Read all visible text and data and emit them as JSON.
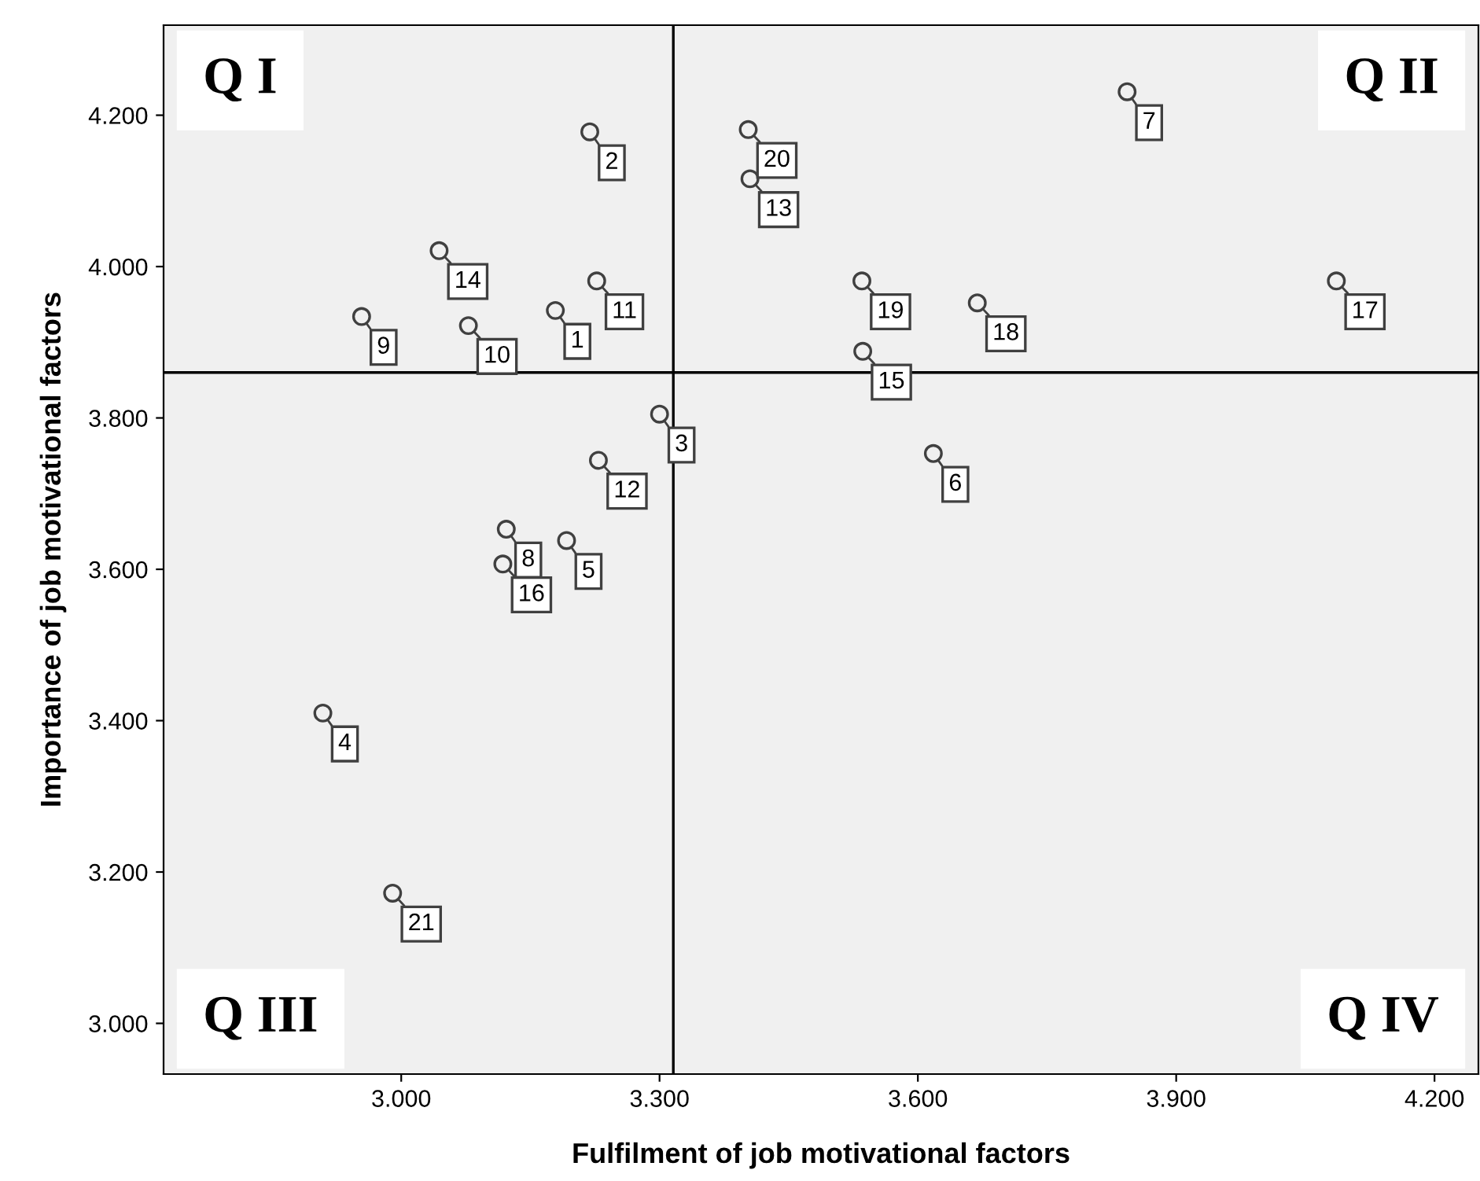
{
  "chart_data": {
    "type": "scatter",
    "xlabel": "Fulfilment of job motivational factors",
    "ylabel": "Importance of job motivational factors",
    "x": [
      3.179,
      3.219,
      3.3,
      2.909,
      3.192,
      3.618,
      3.843,
      3.122,
      2.954,
      3.078,
      3.227,
      3.229,
      3.405,
      3.044,
      3.536,
      3.118,
      4.086,
      3.669,
      3.535,
      3.403,
      2.99
    ],
    "series": [
      {
        "color": "#404040",
        "values": [
          3.942,
          4.178,
          3.805,
          3.41,
          3.638,
          3.753,
          4.231,
          3.653,
          3.934,
          3.922,
          3.981,
          3.744,
          4.116,
          4.021,
          3.888,
          3.607,
          3.981,
          3.952,
          3.981,
          4.181,
          3.172
        ]
      }
    ],
    "marker": "circle",
    "xlim": [
      2.724,
      4.251
    ],
    "ylim": [
      2.933,
      4.319
    ],
    "xticks": [
      {
        "value": 3.0,
        "label": "3.000"
      },
      {
        "value": 3.3,
        "label": "3.300"
      },
      {
        "value": 3.6,
        "label": "3.600"
      },
      {
        "value": 3.9,
        "label": "3.900"
      },
      {
        "value": 4.2,
        "label": "4.200"
      }
    ],
    "yticks": [
      {
        "value": 3.0,
        "label": "3.000"
      },
      {
        "value": 3.2,
        "label": "3.200"
      },
      {
        "value": 3.4,
        "label": "3.400"
      },
      {
        "value": 3.6,
        "label": "3.600"
      },
      {
        "value": 3.8,
        "label": "3.800"
      },
      {
        "value": 4.0,
        "label": "4.000"
      },
      {
        "value": 4.2,
        "label": "4.200"
      }
    ],
    "ref_lines": [
      {
        "axis": "x",
        "value": 3.316,
        "color": "#000000"
      },
      {
        "axis": "y",
        "value": 3.86,
        "color": "#000000"
      }
    ],
    "grid": false,
    "legend": false,
    "annotations": [
      "Q I",
      "Q II",
      "Q III",
      "Q IV",
      {
        "text": "1",
        "x": 3.179,
        "y": 3.942
      },
      {
        "text": "2",
        "x": 3.219,
        "y": 4.178
      },
      {
        "text": "3",
        "x": 3.3,
        "y": 3.805
      },
      {
        "text": "4",
        "x": 2.909,
        "y": 3.41
      },
      {
        "text": "5",
        "x": 3.192,
        "y": 3.638
      },
      {
        "text": "6",
        "x": 3.618,
        "y": 3.753
      },
      {
        "text": "7",
        "x": 3.843,
        "y": 4.231
      },
      {
        "text": "8",
        "x": 3.122,
        "y": 3.653
      },
      {
        "text": "9",
        "x": 2.954,
        "y": 3.934
      },
      {
        "text": "10",
        "x": 3.078,
        "y": 3.922
      },
      {
        "text": "11",
        "x": 3.227,
        "y": 3.981
      },
      {
        "text": "12",
        "x": 3.229,
        "y": 3.744
      },
      {
        "text": "13",
        "x": 3.405,
        "y": 4.116
      },
      {
        "text": "14",
        "x": 3.044,
        "y": 4.021
      },
      {
        "text": "15",
        "x": 3.536,
        "y": 3.888
      },
      {
        "text": "16",
        "x": 3.118,
        "y": 3.607
      },
      {
        "text": "17",
        "x": 4.086,
        "y": 3.981
      },
      {
        "text": "18",
        "x": 3.669,
        "y": 3.952
      },
      {
        "text": "19",
        "x": 3.535,
        "y": 3.981
      },
      {
        "text": "20",
        "x": 3.403,
        "y": 4.181
      },
      {
        "text": "21",
        "x": 2.99,
        "y": 3.172
      }
    ]
  }
}
